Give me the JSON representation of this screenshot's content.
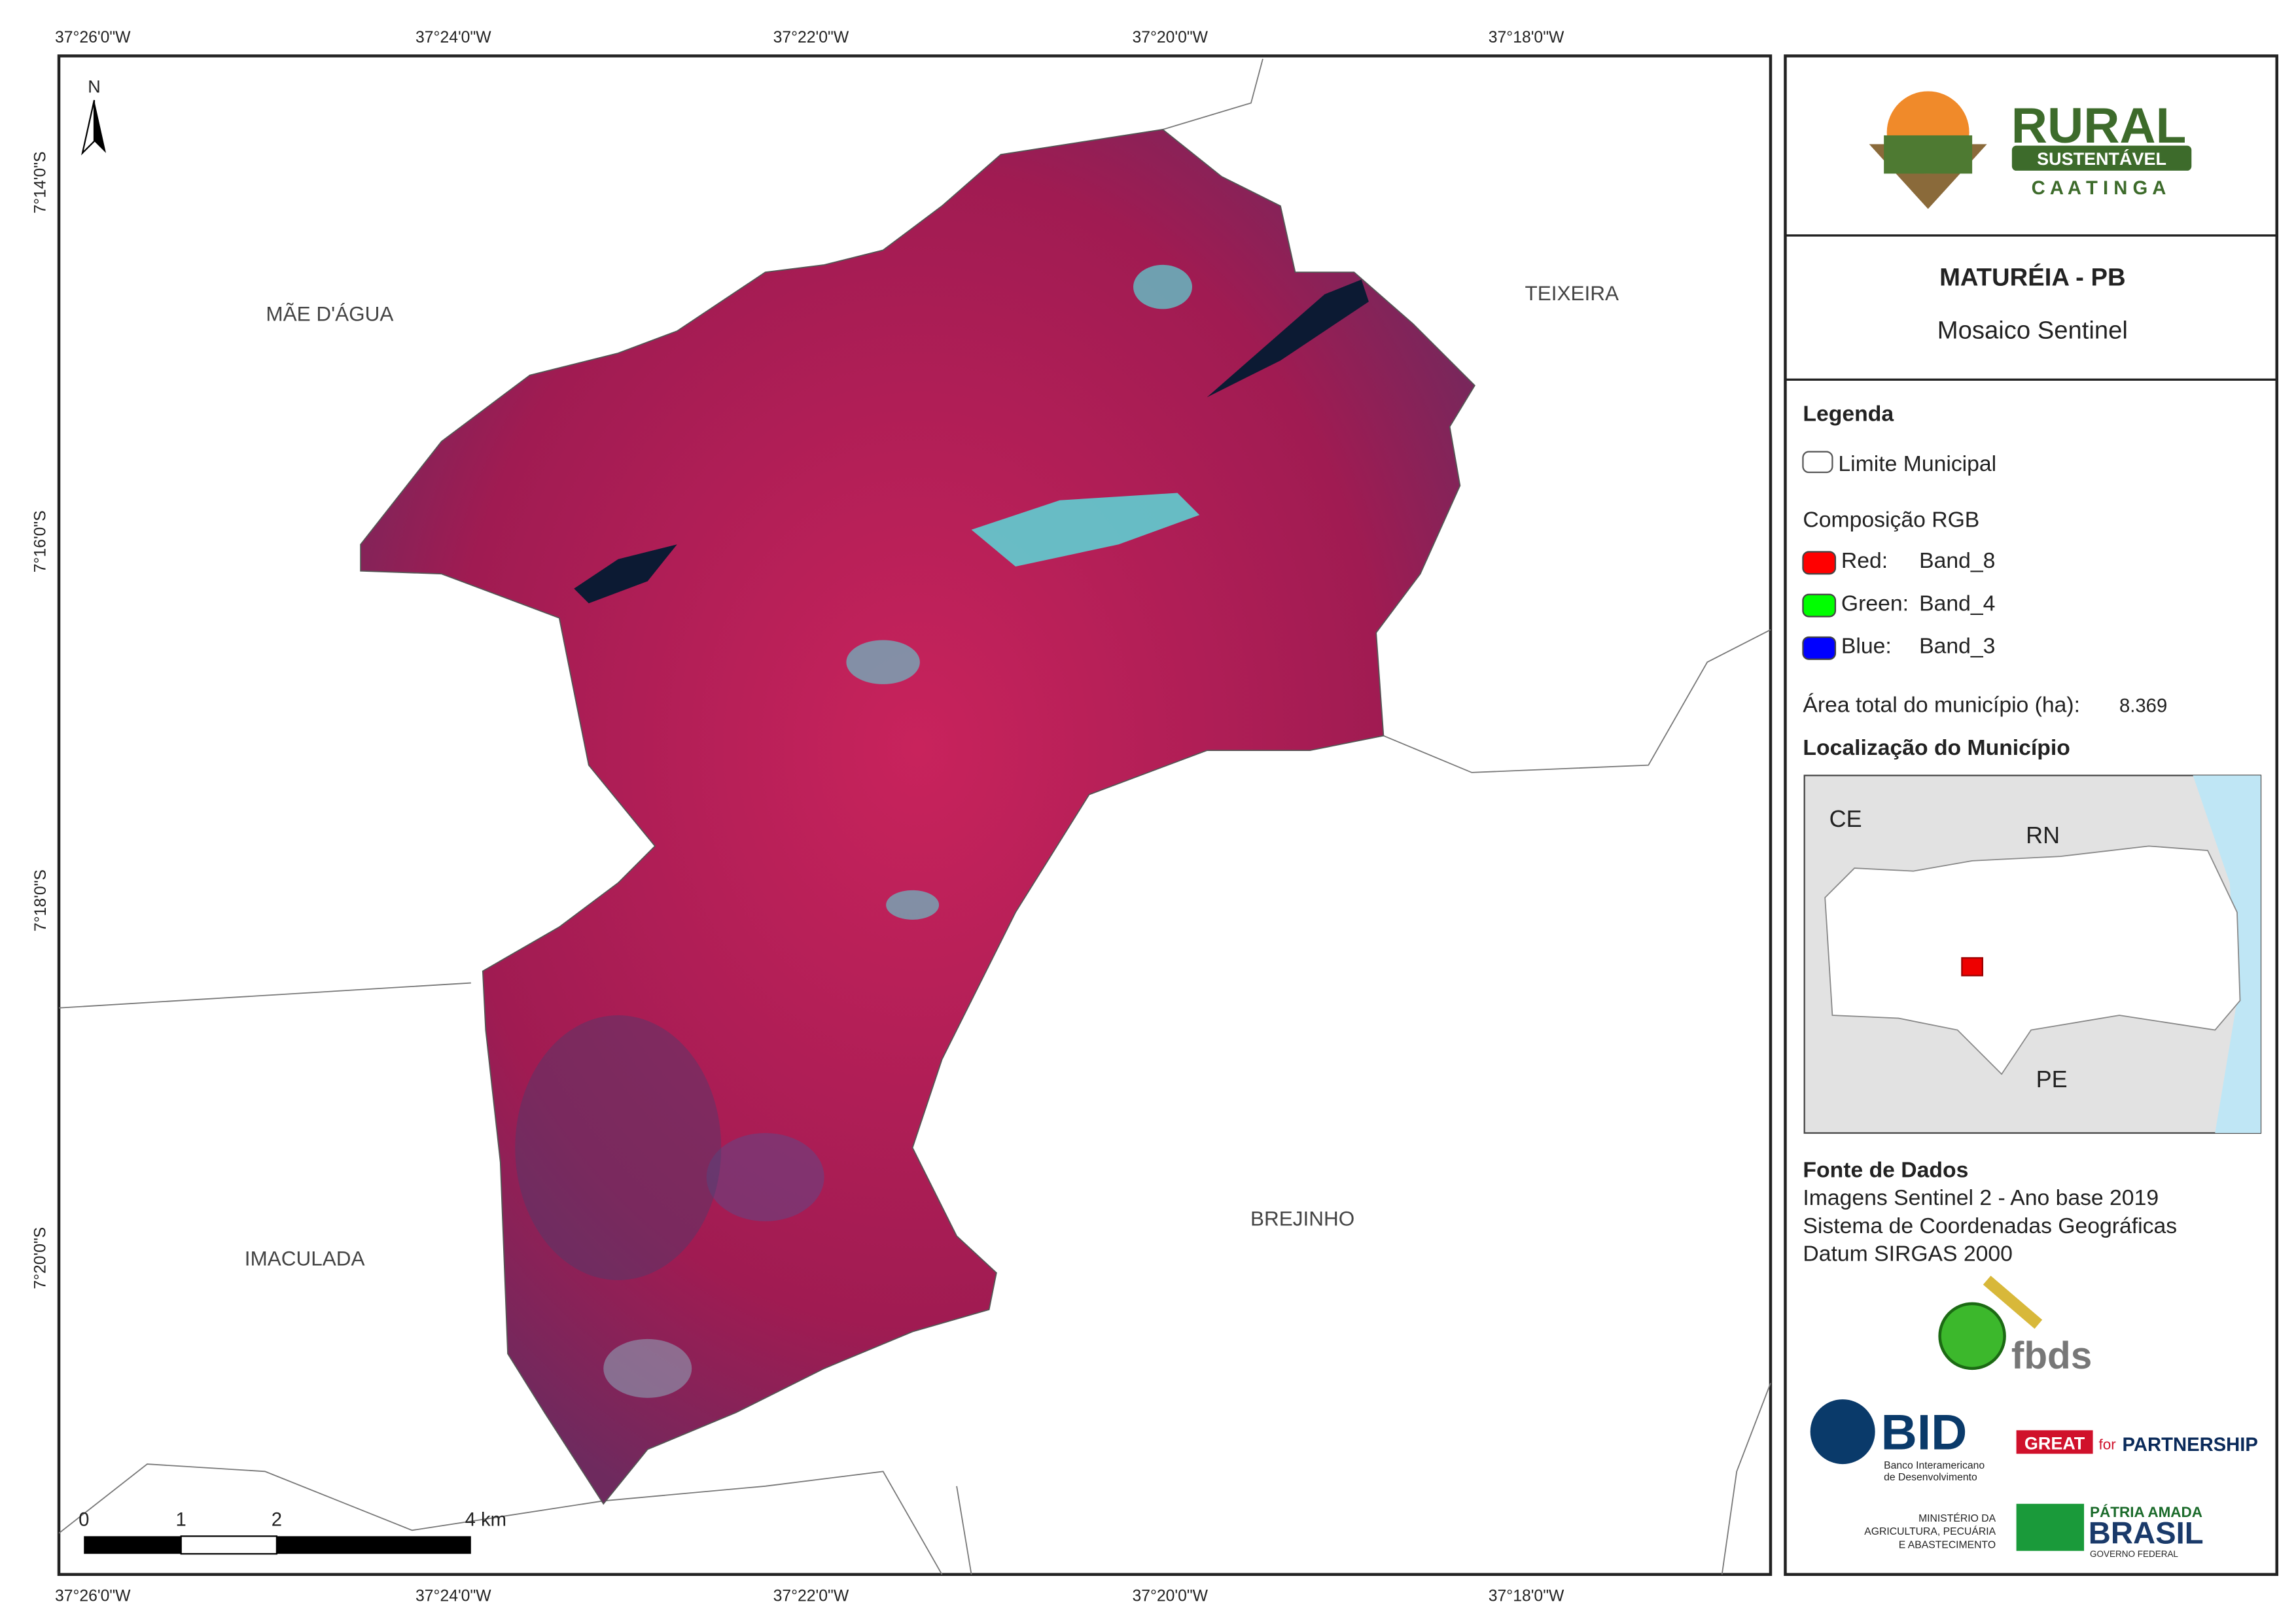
{
  "map": {
    "top_ticks": [
      "37°26'0\"W",
      "37°24'0\"W",
      "37°22'0\"W",
      "37°20'0\"W",
      "37°18'0\"W"
    ],
    "bottom_ticks": [
      "37°26'0\"W",
      "37°24'0\"W",
      "37°22'0\"W",
      "37°20'0\"W",
      "37°18'0\"W"
    ],
    "left_ticks": [
      "7°14'0\"S",
      "7°16'0\"S",
      "7°18'0\"S",
      "7°20'0\"S"
    ],
    "places": [
      "MÃE D'ÁGUA",
      "TEIXEIRA",
      "IMACULADA",
      "BREJINHO"
    ],
    "north": "N",
    "scale_labels": [
      "0",
      "1",
      "2",
      "4 km"
    ]
  },
  "panel": {
    "logo": {
      "rural": "RURAL",
      "sustentavel": "SUSTENTÁVEL",
      "caatinga": "C A A T I N G A"
    },
    "title": "MATURÉIA - PB",
    "subtitle": "Mosaico Sentinel",
    "legend": {
      "heading": "Legenda",
      "boundary": "Limite Municipal",
      "rgb": "Composição RGB",
      "bands": [
        {
          "channel": "Red:",
          "band": "Band_8",
          "color": "#ff0000"
        },
        {
          "channel": "Green:",
          "band": "Band_4",
          "color": "#00ff00"
        },
        {
          "channel": "Blue:",
          "band": "Band_3",
          "color": "#0000ff"
        }
      ]
    },
    "area_label": "Área total do município (ha):",
    "area_value": "8.369",
    "location_heading": "Localização do Município",
    "inset_labels": [
      "CE",
      "RN",
      "PE"
    ],
    "source_heading": "Fonte de Dados",
    "source_lines": [
      "Imagens Sentinel 2 - Ano base 2019",
      "Sistema de Coordenadas Geográficas",
      "Datum SIRGAS 2000"
    ],
    "logos": {
      "fbds": "fbds",
      "bid": "BID",
      "bid_name": [
        "Banco Interamericano",
        "de Desenvolvimento"
      ],
      "great": "GREAT",
      "for": "for",
      "partnership": "PARTNERSHIP",
      "ministry": [
        "MINISTÉRIO DA",
        "AGRICULTURA, PECUÁRIA",
        "E ABASTECIMENTO"
      ],
      "patria": "PÁTRIA AMADA",
      "brasil": "BRASIL",
      "governo": "GOVERNO FEDERAL"
    }
  }
}
